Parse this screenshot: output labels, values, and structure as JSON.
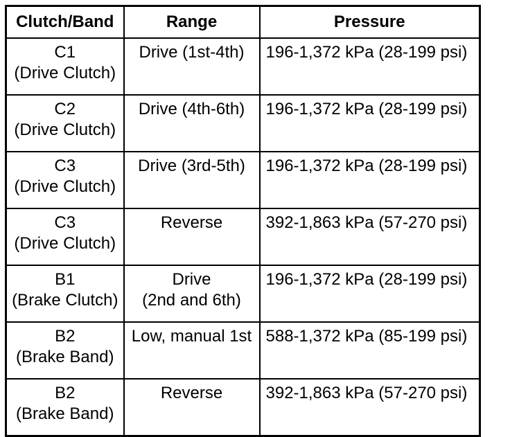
{
  "page": {
    "background": "#ffffff",
    "border_color": "#000000"
  },
  "table": {
    "columns": [
      {
        "key": "clutch_band",
        "label": "Clutch/Band"
      },
      {
        "key": "range",
        "label": "Range"
      },
      {
        "key": "pressure",
        "label": "Pressure"
      }
    ],
    "rows": [
      {
        "component": "C1",
        "component_sub": "(Drive Clutch)",
        "range_line1": "Drive (1st-4th)",
        "range_line2": "",
        "pressure": "196-1,372 kPa (28-199 psi)"
      },
      {
        "component": "C2",
        "component_sub": "(Drive Clutch)",
        "range_line1": "Drive (4th-6th)",
        "range_line2": "",
        "pressure": "196-1,372 kPa (28-199 psi)"
      },
      {
        "component": "C3",
        "component_sub": "(Drive Clutch)",
        "range_line1": "Drive (3rd-5th)",
        "range_line2": "",
        "pressure": "196-1,372 kPa (28-199 psi)"
      },
      {
        "component": "C3",
        "component_sub": "(Drive Clutch)",
        "range_line1": "Reverse",
        "range_line2": "",
        "pressure": "392-1,863 kPa (57-270 psi)"
      },
      {
        "component": "B1",
        "component_sub": "(Brake Clutch)",
        "range_line1": "Drive",
        "range_line2": "(2nd and 6th)",
        "pressure": "196-1,372 kPa (28-199 psi)"
      },
      {
        "component": "B2",
        "component_sub": "(Brake Band)",
        "range_line1": "Low, manual 1st",
        "range_line2": "",
        "pressure": "588-1,372 kPa (85-199 psi)"
      },
      {
        "component": "B2",
        "component_sub": "(Brake Band)",
        "range_line1": "Reverse",
        "range_line2": "",
        "pressure": "392-1,863 kPa (57-270 psi)"
      }
    ]
  }
}
